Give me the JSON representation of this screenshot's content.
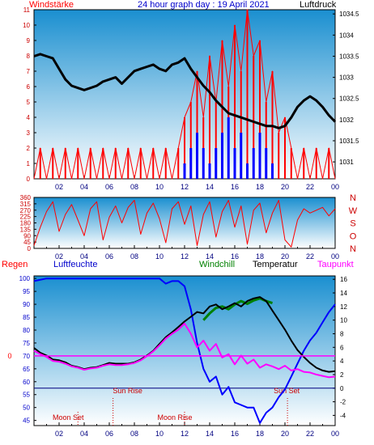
{
  "colors": {
    "wind": "#ff0000",
    "gust": "#0000ff",
    "pressure": "#000000",
    "direction": "#ff0000",
    "humidity": "#0000ff",
    "windchill": "#008000",
    "temperature": "#000000",
    "dewpoint": "#ff00ff",
    "rain_line": "#000080",
    "sky_top": "#1a8fd0",
    "sky_bottom": "#ffffff"
  },
  "header": {
    "left": "Windstärke",
    "title": "24 hour graph day : 19 April 2021",
    "right": "Luftdruck"
  },
  "chart_data": [
    {
      "type": "line",
      "id": "wind-pressure",
      "x_ticks": [
        "02",
        "04",
        "06",
        "08",
        "10",
        "12",
        "14",
        "16",
        "18",
        "20",
        "22",
        "00"
      ],
      "left_axis": {
        "label": "Windstärke",
        "ylim": [
          0,
          11
        ],
        "ticks": [
          0,
          1,
          2,
          3,
          4,
          5,
          6,
          7,
          8,
          9,
          10,
          11
        ]
      },
      "right_axis": {
        "label": "Luftdruck",
        "ylim": [
          1030.6,
          1034.6
        ],
        "ticks": [
          1031,
          1031.5,
          1032,
          1032.5,
          1033,
          1033.5,
          1034,
          1034.5
        ]
      },
      "series": [
        {
          "name": "Windstärke",
          "axis": "left",
          "color": "#ff0000",
          "x": [
            0.0,
            0.5,
            1.0,
            1.5,
            2.0,
            2.5,
            3.0,
            3.5,
            4.0,
            4.5,
            5.0,
            5.5,
            6.0,
            6.5,
            7.0,
            7.5,
            8.0,
            8.5,
            9.0,
            9.5,
            10.0,
            10.5,
            11.0,
            11.5,
            12.0,
            12.5,
            13.0,
            13.5,
            14.0,
            14.5,
            15.0,
            15.5,
            16.0,
            16.5,
            17.0,
            17.5,
            18.0,
            18.5,
            19.0,
            19.5,
            20.0,
            20.5,
            21.0,
            21.5,
            22.0,
            22.5,
            23.0,
            23.5,
            24.0
          ],
          "y": [
            0,
            2,
            0,
            2,
            0,
            2,
            0,
            2,
            0,
            2,
            0,
            2,
            0,
            2,
            0,
            2,
            0,
            2,
            0,
            2,
            0,
            2,
            0,
            2,
            4,
            5,
            7,
            4,
            8,
            5,
            9,
            6,
            10,
            7,
            11,
            8,
            9,
            5,
            7,
            3,
            4,
            2,
            0,
            2,
            0,
            2,
            0,
            2,
            0
          ]
        },
        {
          "name": "Böen",
          "axis": "left",
          "color": "#0000ff",
          "x": [
            11.5,
            12.0,
            12.5,
            13.0,
            13.5,
            14.0,
            14.5,
            15.0,
            15.5,
            16.0,
            16.5,
            17.0,
            17.5,
            18.0,
            18.5,
            19.0,
            19.5,
            20.0
          ],
          "y": [
            0,
            1,
            2,
            3,
            2,
            1,
            2,
            3,
            4,
            2,
            3,
            1,
            2,
            3,
            2,
            1,
            0,
            0
          ]
        },
        {
          "name": "Luftdruck",
          "axis": "right",
          "color": "#000000",
          "x": [
            0.0,
            0.5,
            1.0,
            1.5,
            2.0,
            2.5,
            3.0,
            3.5,
            4.0,
            4.5,
            5.0,
            5.5,
            6.0,
            6.5,
            7.0,
            7.5,
            8.0,
            8.5,
            9.0,
            9.5,
            10.0,
            10.5,
            11.0,
            11.5,
            12.0,
            12.5,
            13.0,
            13.5,
            14.0,
            14.5,
            15.0,
            15.5,
            16.0,
            16.5,
            17.0,
            17.5,
            18.0,
            18.5,
            19.0,
            19.5,
            20.0,
            20.5,
            21.0,
            21.5,
            22.0,
            22.5,
            23.0,
            23.5,
            24.0
          ],
          "y": [
            1033.5,
            1033.55,
            1033.5,
            1033.45,
            1033.2,
            1032.95,
            1032.8,
            1032.75,
            1032.7,
            1032.75,
            1032.8,
            1032.9,
            1032.95,
            1033.0,
            1032.85,
            1033.0,
            1033.15,
            1033.2,
            1033.25,
            1033.3,
            1033.2,
            1033.15,
            1033.3,
            1033.35,
            1033.45,
            1033.2,
            1033.0,
            1032.8,
            1032.65,
            1032.45,
            1032.3,
            1032.15,
            1032.1,
            1032.05,
            1032.0,
            1031.95,
            1031.9,
            1031.85,
            1031.85,
            1031.8,
            1031.85,
            1032.05,
            1032.3,
            1032.45,
            1032.55,
            1032.45,
            1032.3,
            1032.1,
            1031.95
          ]
        }
      ]
    },
    {
      "type": "line",
      "id": "wind-direction",
      "x_ticks": [
        "02",
        "04",
        "06",
        "08",
        "10",
        "12",
        "14",
        "16",
        "18",
        "20",
        "22",
        "00"
      ],
      "left_axis": {
        "ylim": [
          0,
          360
        ],
        "ticks": [
          0,
          45,
          90,
          135,
          180,
          225,
          270,
          315,
          360
        ]
      },
      "right_axis": {
        "labels": [
          "N",
          "W",
          "S",
          "O",
          "N"
        ]
      },
      "series": [
        {
          "name": "Windrichtung",
          "color": "#ff0000",
          "x": [
            0.0,
            0.5,
            1.0,
            1.5,
            2.0,
            2.5,
            3.0,
            3.5,
            4.0,
            4.5,
            5.0,
            5.5,
            6.0,
            6.5,
            7.0,
            7.5,
            8.0,
            8.5,
            9.0,
            9.5,
            10.0,
            10.5,
            11.0,
            11.5,
            12.0,
            12.5,
            13.0,
            13.5,
            14.0,
            14.5,
            15.0,
            15.5,
            16.0,
            16.5,
            17.0,
            17.5,
            18.0,
            18.5,
            19.0,
            19.5,
            20.0,
            20.5,
            21.0,
            21.5,
            22.0,
            22.5,
            23.0,
            23.5,
            24.0
          ],
          "y": [
            20,
            150,
            260,
            330,
            120,
            240,
            310,
            200,
            90,
            280,
            330,
            60,
            220,
            300,
            180,
            290,
            340,
            100,
            250,
            320,
            210,
            40,
            280,
            330,
            170,
            300,
            20,
            240,
            330,
            80,
            260,
            340,
            150,
            300,
            30,
            270,
            320,
            110,
            250,
            340,
            60,
            10,
            200,
            280,
            250,
            270,
            290,
            230,
            280
          ]
        }
      ]
    },
    {
      "type": "line",
      "id": "temperature-humidity",
      "x_ticks": [
        "02",
        "04",
        "06",
        "08",
        "10",
        "12",
        "14",
        "16",
        "18",
        "20",
        "22",
        "00"
      ],
      "left_axis": {
        "label": "Luftfeuchte",
        "ylim": [
          43,
          101
        ],
        "ticks": [
          45,
          50,
          55,
          60,
          65,
          70,
          75,
          80,
          85,
          90,
          95,
          100
        ]
      },
      "right_axis": {
        "label": "Temperatur",
        "ylim": [
          -5.5,
          16.5
        ],
        "ticks": [
          -4,
          -2,
          0,
          2,
          4,
          6,
          8,
          10,
          12,
          14,
          16
        ]
      },
      "rain": {
        "label": "Regen",
        "value": 0
      },
      "labels": {
        "regen": "Regen",
        "luftfeuchte": "Luftfeuchte",
        "windchill": "Windchill",
        "temperatur": "Temperatur",
        "taupunkt": "Taupunkt",
        "sun_rise": "Sun Rise",
        "sun_set": "Sun Set",
        "moon_set": "Moon Set",
        "moon_rise": "Moon Rise"
      },
      "events": [
        {
          "name": "Sun Rise",
          "time": 6.3
        },
        {
          "name": "Sun Set",
          "time": 20.2
        },
        {
          "name": "Moon Set",
          "time": 3.5
        },
        {
          "name": "Moon Rise",
          "time": 12.0
        }
      ],
      "series": [
        {
          "name": "Luftfeuchte",
          "axis": "left",
          "color": "#0000ff",
          "x": [
            0.0,
            1.0,
            2.0,
            3.0,
            4.0,
            5.0,
            6.0,
            7.0,
            8.0,
            9.0,
            9.5,
            10.0,
            10.5,
            11.0,
            11.5,
            12.0,
            12.5,
            13.0,
            13.5,
            14.0,
            14.5,
            15.0,
            15.5,
            16.0,
            16.5,
            17.0,
            17.5,
            18.0,
            18.5,
            19.0,
            19.5,
            20.0,
            20.5,
            21.0,
            21.5,
            22.0,
            22.5,
            23.0,
            23.5,
            24.0
          ],
          "y": [
            99,
            100,
            100,
            100,
            100,
            100,
            100,
            100,
            100,
            100,
            100,
            100,
            98,
            99,
            99,
            97,
            88,
            75,
            65,
            60,
            62,
            55,
            58,
            52,
            51,
            50,
            50,
            44,
            48,
            50,
            54,
            57,
            62,
            67,
            72,
            76,
            79,
            83,
            87,
            90
          ]
        },
        {
          "name": "Windchill",
          "axis": "right",
          "color": "#008000",
          "x": [
            13.5,
            14.0,
            14.5,
            15.0,
            15.5,
            16.0,
            16.5,
            17.0,
            17.5,
            18.0,
            18.5,
            19.0
          ],
          "y": [
            10.0,
            11.0,
            11.8,
            12.0,
            11.6,
            12.3,
            12.8,
            12.4,
            12.9,
            13.2,
            12.8,
            12.5
          ]
        },
        {
          "name": "Temperatur",
          "axis": "right",
          "color": "#000000",
          "x": [
            0.0,
            0.5,
            1.0,
            1.5,
            2.0,
            2.5,
            3.0,
            3.5,
            4.0,
            4.5,
            5.0,
            5.5,
            6.0,
            6.5,
            7.0,
            7.5,
            8.0,
            8.5,
            9.0,
            9.5,
            10.0,
            10.5,
            11.0,
            11.5,
            12.0,
            12.5,
            13.0,
            13.5,
            14.0,
            14.5,
            15.0,
            15.5,
            16.0,
            16.5,
            17.0,
            17.5,
            18.0,
            18.5,
            19.0,
            19.5,
            20.0,
            20.5,
            21.0,
            21.5,
            22.0,
            22.5,
            23.0,
            23.5,
            24.0
          ],
          "y": [
            5.9,
            5.2,
            4.8,
            4.2,
            4.1,
            3.8,
            3.3,
            3.1,
            2.8,
            3.0,
            3.1,
            3.4,
            3.7,
            3.6,
            3.6,
            3.6,
            3.8,
            4.2,
            4.8,
            5.5,
            6.5,
            7.5,
            8.2,
            9.0,
            9.8,
            10.5,
            11.2,
            11.0,
            12.0,
            12.3,
            11.6,
            12.0,
            12.5,
            12.0,
            12.8,
            13.2,
            13.4,
            12.8,
            11.4,
            10.0,
            8.6,
            7.0,
            5.6,
            4.6,
            3.7,
            3.0,
            2.6,
            2.4,
            2.5
          ]
        },
        {
          "name": "Taupunkt",
          "axis": "right",
          "color": "#ff00ff",
          "x": [
            0.0,
            0.5,
            1.0,
            1.5,
            2.0,
            2.5,
            3.0,
            3.5,
            4.0,
            4.5,
            5.0,
            5.5,
            6.0,
            6.5,
            7.0,
            7.5,
            8.0,
            8.5,
            9.0,
            9.5,
            10.0,
            10.5,
            11.0,
            11.5,
            12.0,
            12.5,
            13.0,
            13.5,
            14.0,
            14.5,
            15.0,
            15.5,
            16.0,
            16.5,
            17.0,
            17.5,
            18.0,
            18.5,
            19.0,
            19.5,
            20.0,
            20.5,
            21.0,
            21.5,
            22.0,
            22.5,
            23.0,
            23.5,
            24.0
          ],
          "y": [
            5.5,
            5.0,
            4.6,
            4.0,
            3.9,
            3.6,
            3.2,
            3.0,
            2.7,
            2.9,
            3.0,
            3.3,
            3.5,
            3.4,
            3.4,
            3.5,
            3.7,
            4.1,
            4.7,
            5.4,
            6.3,
            7.3,
            8.0,
            8.6,
            9.5,
            8.0,
            6.0,
            7.0,
            5.5,
            6.5,
            4.5,
            5.0,
            3.5,
            4.8,
            3.6,
            4.2,
            3.0,
            3.5,
            3.2,
            2.8,
            3.3,
            2.6,
            2.8,
            2.4,
            2.3,
            2.0,
            1.8,
            1.6,
            1.7
          ]
        }
      ]
    }
  ]
}
